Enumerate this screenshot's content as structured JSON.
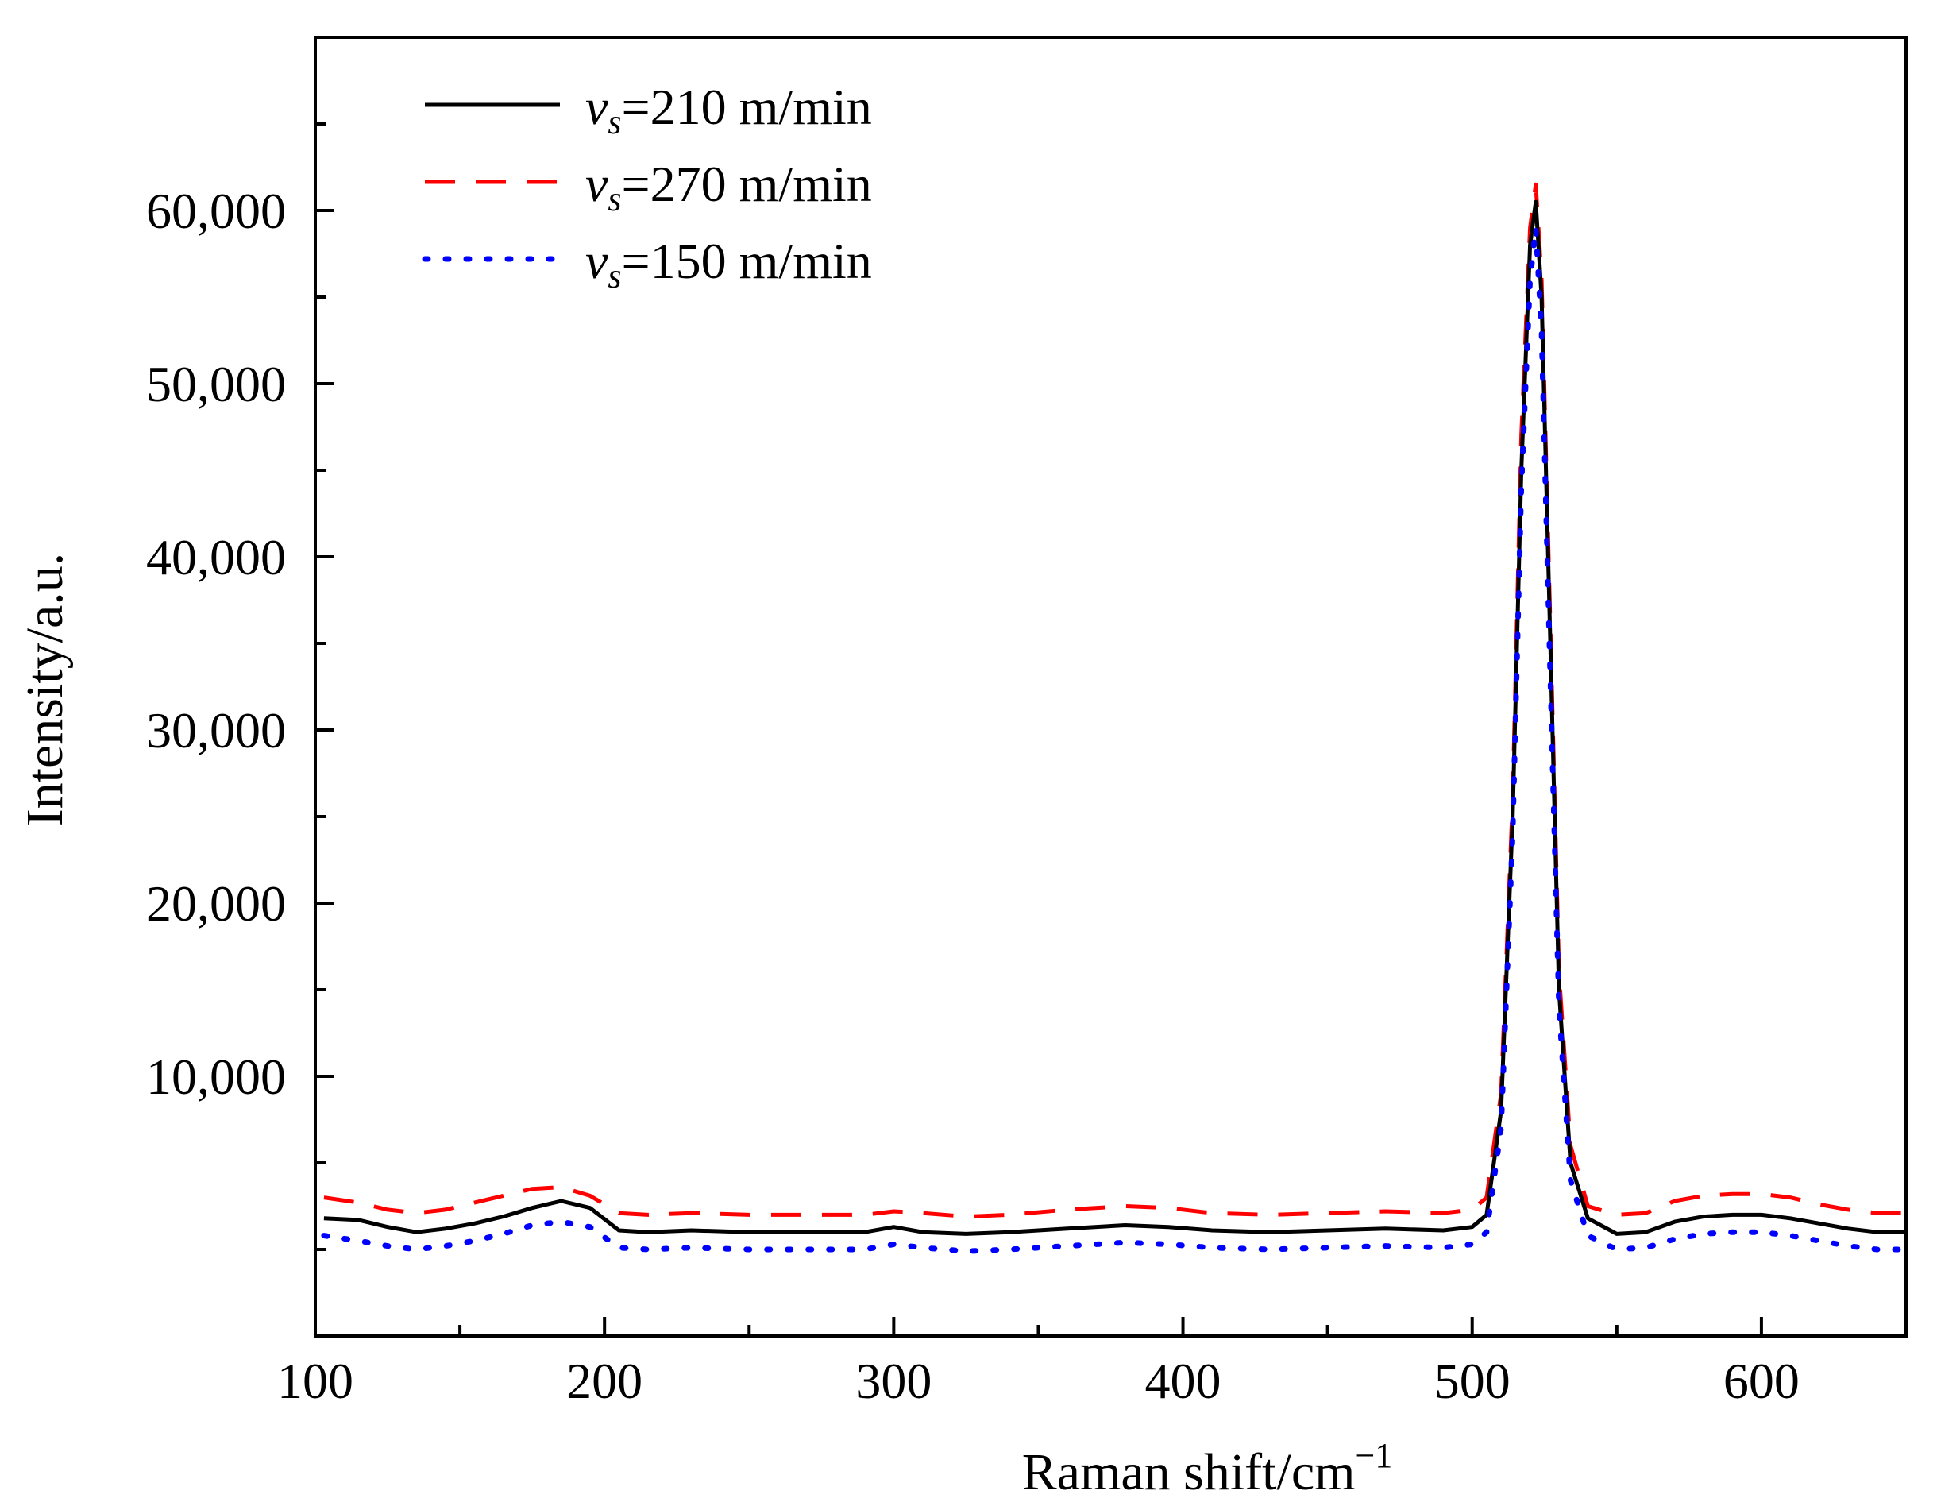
{
  "chart_data": {
    "type": "line",
    "title": "",
    "xlabel": "Raman shift/cm",
    "xlabel_sup": "−1",
    "ylabel": "Intensity/a.u.",
    "xlim": [
      100,
      650
    ],
    "ylim": [
      -5000,
      70000
    ],
    "x_ticks": [
      100,
      200,
      300,
      400,
      500,
      600
    ],
    "x_tick_labels": [
      "100",
      "200",
      "300",
      "400",
      "500",
      "600"
    ],
    "y_ticks": [
      10000,
      20000,
      30000,
      40000,
      50000,
      60000
    ],
    "y_tick_labels": [
      "10,000",
      "20,000",
      "30,000",
      "40,000",
      "50,000",
      "60,000"
    ],
    "legend_position": "top-left",
    "series": [
      {
        "name": "210 m/min",
        "label_symbol": "v",
        "label_sub": "s",
        "label_rest": "=210 m/min",
        "color": "#000000",
        "style": "solid",
        "x": [
          103,
          115,
          125,
          135,
          145,
          155,
          165,
          175,
          185,
          195,
          205,
          215,
          230,
          250,
          270,
          290,
          300,
          310,
          325,
          340,
          360,
          380,
          395,
          410,
          430,
          450,
          470,
          490,
          500,
          505,
          510,
          514,
          517,
          520,
          522,
          524,
          527,
          530,
          534,
          540,
          550,
          560,
          570,
          580,
          590,
          600,
          610,
          620,
          630,
          640,
          650
        ],
        "y": [
          1800,
          1700,
          1300,
          1000,
          1200,
          1500,
          1900,
          2400,
          2800,
          2400,
          1100,
          1000,
          1100,
          1000,
          1000,
          1000,
          1300,
          1000,
          900,
          1000,
          1200,
          1400,
          1300,
          1100,
          1000,
          1100,
          1200,
          1100,
          1300,
          2000,
          8000,
          25000,
          45000,
          58000,
          60500,
          55000,
          35000,
          15000,
          5000,
          1800,
          900,
          1000,
          1600,
          1900,
          2000,
          2000,
          1800,
          1500,
          1200,
          1000,
          1000
        ]
      },
      {
        "name": "270 m/min",
        "label_symbol": "v",
        "label_sub": "s",
        "label_rest": "=270 m/min",
        "color": "#ff0000",
        "style": "dashed",
        "x": [
          103,
          115,
          125,
          135,
          145,
          155,
          165,
          175,
          185,
          195,
          205,
          215,
          230,
          250,
          270,
          290,
          300,
          310,
          325,
          340,
          360,
          380,
          395,
          410,
          430,
          450,
          470,
          490,
          500,
          505,
          510,
          514,
          517,
          520,
          522,
          524,
          527,
          530,
          534,
          540,
          550,
          560,
          570,
          580,
          590,
          600,
          610,
          620,
          630,
          640,
          650
        ],
        "y": [
          3000,
          2700,
          2300,
          2100,
          2300,
          2700,
          3100,
          3500,
          3600,
          3100,
          2100,
          2000,
          2100,
          2000,
          2000,
          2000,
          2200,
          2100,
          1900,
          2000,
          2300,
          2500,
          2400,
          2100,
          2000,
          2100,
          2200,
          2100,
          2300,
          3000,
          9000,
          26000,
          47000,
          59000,
          61500,
          56000,
          36000,
          16000,
          6000,
          2500,
          2000,
          2100,
          2800,
          3100,
          3200,
          3200,
          3000,
          2600,
          2300,
          2100,
          2100
        ]
      },
      {
        "name": "150 m/min",
        "label_symbol": "v",
        "label_sub": "s",
        "label_rest": "=150 m/min",
        "color": "#0000ff",
        "style": "dotted",
        "x": [
          103,
          115,
          125,
          135,
          145,
          155,
          165,
          175,
          185,
          195,
          205,
          215,
          230,
          250,
          270,
          290,
          300,
          310,
          325,
          340,
          360,
          380,
          395,
          410,
          430,
          450,
          470,
          490,
          500,
          505,
          510,
          514,
          517,
          520,
          522,
          524,
          527,
          530,
          534,
          540,
          550,
          560,
          570,
          580,
          590,
          600,
          610,
          620,
          630,
          640,
          650
        ],
        "y": [
          800,
          500,
          200,
          0,
          200,
          500,
          900,
          1400,
          1600,
          1300,
          100,
          0,
          100,
          0,
          0,
          0,
          300,
          100,
          -100,
          0,
          200,
          400,
          300,
          100,
          0,
          100,
          200,
          100,
          300,
          1000,
          7000,
          24000,
          44000,
          56000,
          59000,
          53000,
          33000,
          14000,
          4000,
          800,
          0,
          100,
          600,
          900,
          1000,
          1000,
          800,
          500,
          200,
          0,
          0
        ]
      }
    ]
  }
}
